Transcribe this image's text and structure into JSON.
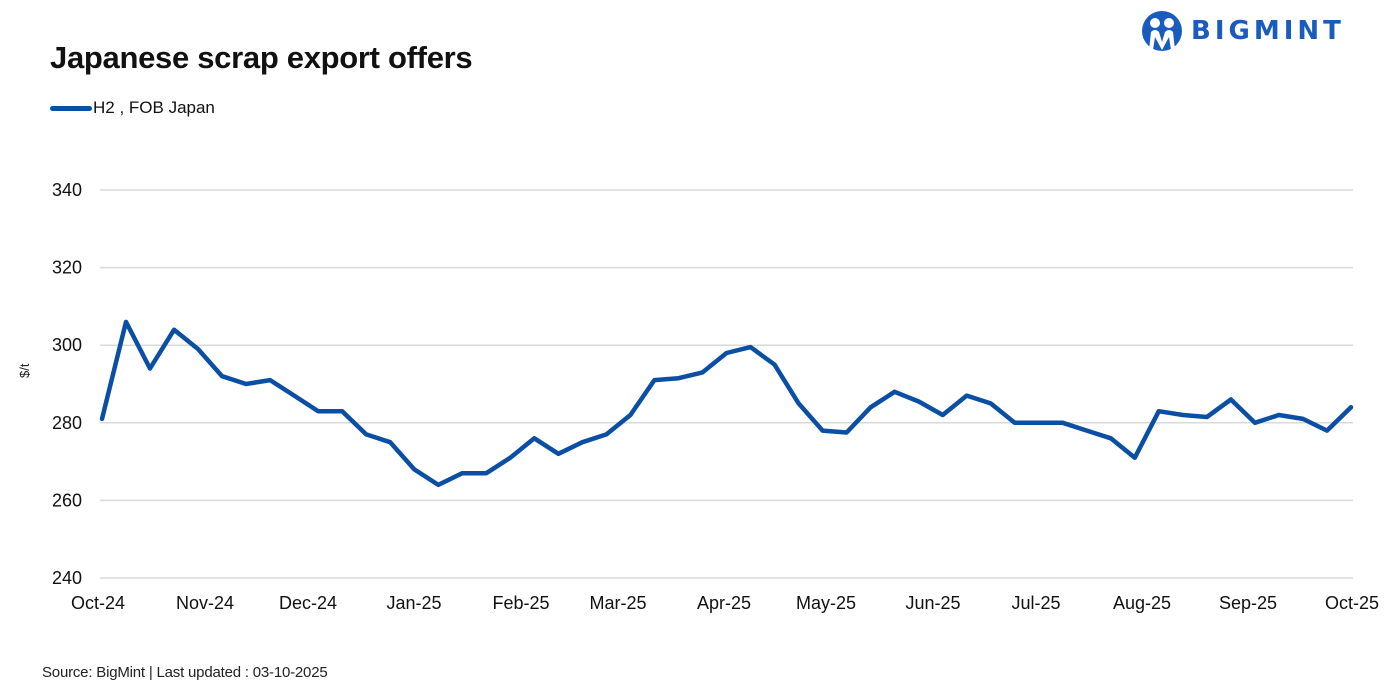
{
  "header": {
    "title": "Japanese scrap export offers",
    "brand": "BIGMINT"
  },
  "legend": {
    "items": [
      {
        "label": "H2 , FOB Japan",
        "color": "#0a4fa3"
      }
    ]
  },
  "footer": {
    "text": "Source: BigMint  | Last updated : 03-10-2025"
  },
  "colors": {
    "line": "#0a4fa3",
    "grid": "#d9d9d9",
    "brand": "#1a5bbf"
  },
  "chart_data": {
    "type": "line",
    "title": "Japanese scrap export offers",
    "xlabel": "",
    "ylabel": "$/t",
    "ylim": [
      240,
      340
    ],
    "yticks": [
      240,
      260,
      280,
      300,
      320,
      340
    ],
    "grid": true,
    "legend_position": "top-left",
    "x_tick_labels": [
      "Oct-24",
      "Nov-24",
      "Dec-24",
      "Jan-25",
      "Feb-25",
      "Mar-25",
      "Apr-25",
      "May-25",
      "Jun-25",
      "Jul-25",
      "Aug-25",
      "Sep-25",
      "Oct-25"
    ],
    "series": [
      {
        "name": "H2 , FOB Japan",
        "color": "#0a4fa3",
        "values": [
          281,
          306,
          294,
          304,
          299,
          292,
          290,
          291,
          287,
          283,
          283,
          277,
          275,
          268,
          264,
          267,
          267,
          271,
          276,
          272,
          275,
          277,
          282,
          291,
          291.5,
          293,
          298,
          299.5,
          295,
          285,
          278,
          277.5,
          284,
          288,
          285.5,
          282,
          287,
          285,
          280,
          280,
          280,
          278,
          276,
          271,
          283,
          282,
          281.5,
          286,
          280,
          282,
          281,
          278,
          284
        ]
      }
    ]
  }
}
